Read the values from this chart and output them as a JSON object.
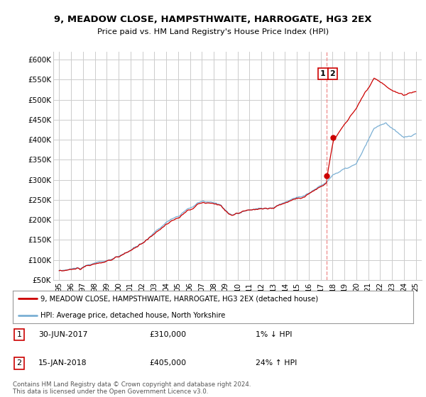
{
  "title_line1": "9, MEADOW CLOSE, HAMPSTHWAITE, HARROGATE, HG3 2EX",
  "title_line2": "Price paid vs. HM Land Registry's House Price Index (HPI)",
  "background_color": "#ffffff",
  "grid_color": "#cccccc",
  "hpi_color": "#7aafd4",
  "price_color": "#cc0000",
  "dashed_line_color": "#cc0000",
  "ylim": [
    50000,
    620000
  ],
  "yticks": [
    50000,
    100000,
    150000,
    200000,
    250000,
    300000,
    350000,
    400000,
    450000,
    500000,
    550000,
    600000
  ],
  "ytick_labels": [
    "£50K",
    "£100K",
    "£150K",
    "£200K",
    "£250K",
    "£300K",
    "£350K",
    "£400K",
    "£450K",
    "£500K",
    "£550K",
    "£600K"
  ],
  "legend_label1": "9, MEADOW CLOSE, HAMPSTHWAITE, HARROGATE, HG3 2EX (detached house)",
  "legend_label2": "HPI: Average price, detached house, North Yorkshire",
  "transaction1_label": "1",
  "transaction1_date": "30-JUN-2017",
  "transaction1_price": "£310,000",
  "transaction1_hpi": "1% ↓ HPI",
  "transaction2_label": "2",
  "transaction2_date": "15-JAN-2018",
  "transaction2_price": "£405,000",
  "transaction2_hpi": "24% ↑ HPI",
  "copyright": "Contains HM Land Registry data © Crown copyright and database right 2024.\nThis data is licensed under the Open Government Licence v3.0.",
  "marker1_x": 2017.5,
  "marker1_y": 310000,
  "marker2_x": 2018.04,
  "marker2_y": 405000,
  "dashed_x": 2017.5,
  "xlim": [
    1994.5,
    2025.5
  ],
  "xtick_years": [
    1995,
    1996,
    1997,
    1998,
    1999,
    2000,
    2001,
    2002,
    2003,
    2004,
    2005,
    2006,
    2007,
    2008,
    2009,
    2010,
    2011,
    2012,
    2013,
    2014,
    2015,
    2016,
    2017,
    2018,
    2019,
    2020,
    2021,
    2022,
    2023,
    2024,
    2025
  ]
}
